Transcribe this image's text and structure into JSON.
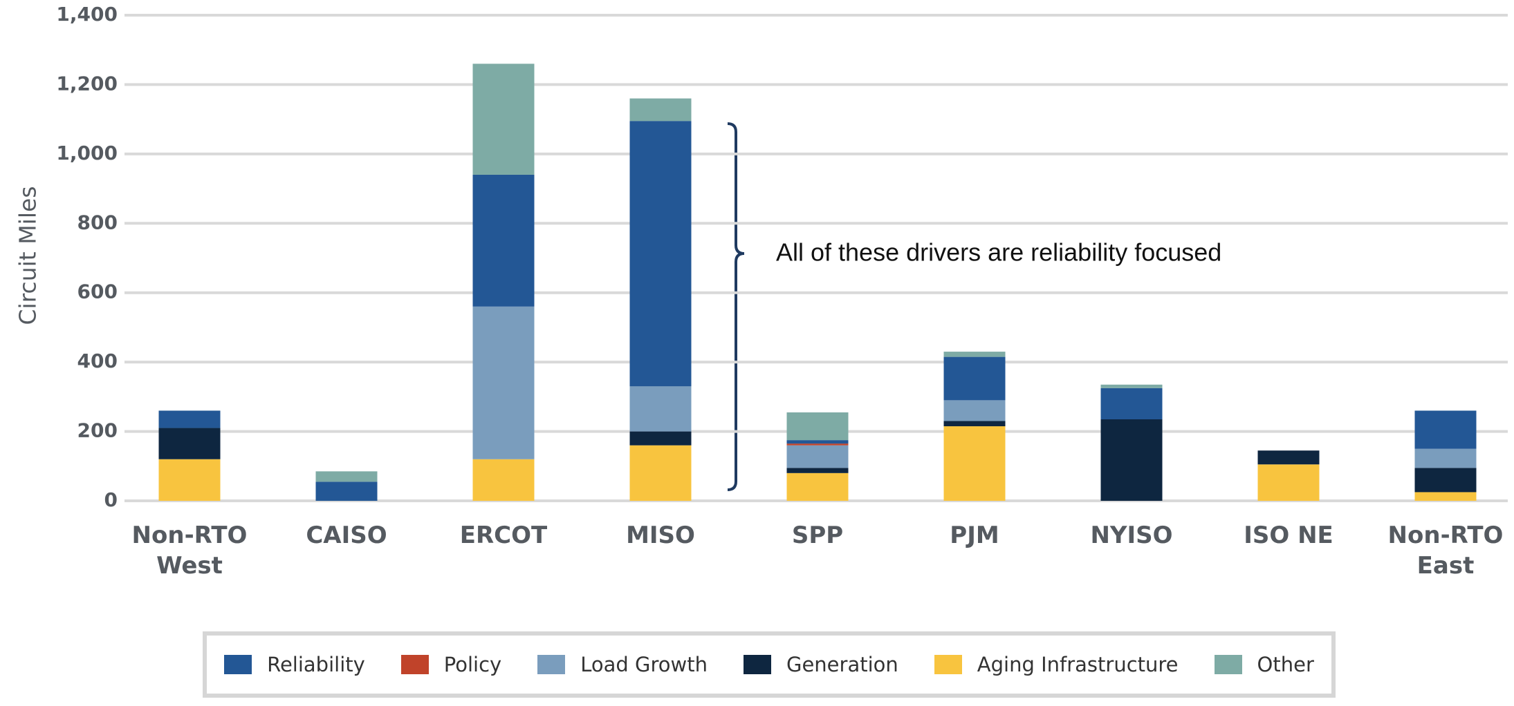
{
  "chart_data": {
    "type": "stacked_bar",
    "y_label": "Circuit Miles",
    "annotation": "All of these drivers are reliability focused",
    "categories": [
      "Non-RTO West",
      "CAISO",
      "ERCOT",
      "MISO",
      "SPP",
      "PJM",
      "NYISO",
      "ISO NE",
      "Non-RTO East"
    ],
    "series": [
      {
        "name": "Aging Infrastructure",
        "color": "#f8c43f",
        "values": [
          120,
          0,
          120,
          160,
          80,
          215,
          0,
          105,
          25
        ]
      },
      {
        "name": "Generation",
        "color": "#0e2640",
        "values": [
          90,
          0,
          0,
          40,
          15,
          15,
          235,
          40,
          70
        ]
      },
      {
        "name": "Load Growth",
        "color": "#7a9dbd",
        "values": [
          0,
          0,
          440,
          130,
          65,
          60,
          0,
          0,
          55
        ]
      },
      {
        "name": "Policy",
        "color": "#c0432a",
        "values": [
          0,
          0,
          0,
          0,
          5,
          0,
          0,
          0,
          0
        ]
      },
      {
        "name": "Reliability",
        "color": "#235795",
        "values": [
          50,
          55,
          380,
          765,
          10,
          125,
          90,
          0,
          110
        ]
      },
      {
        "name": "Other",
        "color": "#7eaba5",
        "values": [
          0,
          30,
          320,
          65,
          80,
          15,
          10,
          0,
          0
        ]
      }
    ],
    "legend_order": [
      "Reliability",
      "Policy",
      "Load Growth",
      "Generation",
      "Aging Infrastructure",
      "Other"
    ],
    "ylim": [
      0,
      1400
    ],
    "yticks": [
      0,
      200,
      400,
      600,
      800,
      {
        "value": 1000,
        "label": "1,000"
      },
      {
        "value": 1200,
        "label": "1,200"
      },
      {
        "value": 1400,
        "label": "1,400"
      }
    ],
    "grid": true
  }
}
